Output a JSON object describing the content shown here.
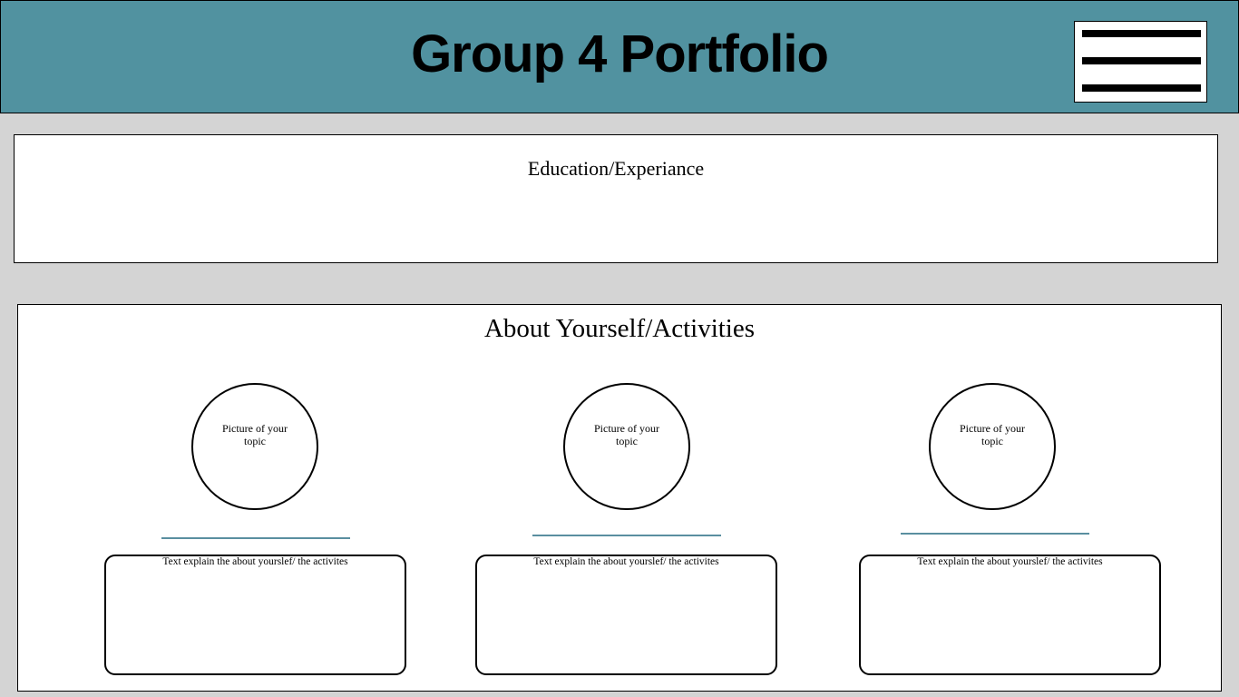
{
  "header": {
    "title": "Group 4 Portfolio",
    "menu_icon": "hamburger-menu-icon",
    "background_color": "#5192a0"
  },
  "education": {
    "title": "Education/Experiance"
  },
  "about": {
    "title": "About Yourself/Activities",
    "cards": [
      {
        "picture_label": "Picture of your topic",
        "text_label": "Text explain the about yourslef/ the activites"
      },
      {
        "picture_label": "Picture of your topic",
        "text_label": "Text explain the about yourslef/ the activites"
      },
      {
        "picture_label": "Picture of your topic",
        "text_label": "Text explain the about yourslef/ the activites"
      }
    ]
  },
  "colors": {
    "header": "#5192a0",
    "page_background": "#d4d4d4",
    "accent_line": "#5a8fa0"
  }
}
